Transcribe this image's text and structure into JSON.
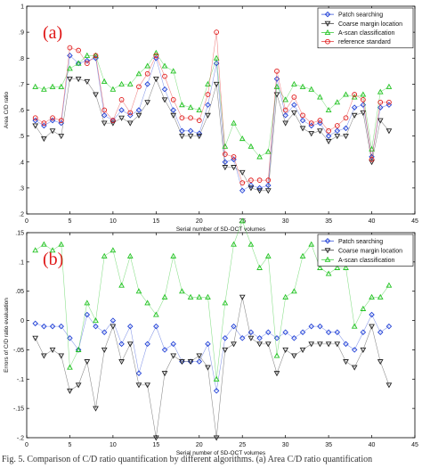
{
  "caption": "Fig. 5. Comparison of C/D ratio quantification by different algorithms. (a) Area C/D ratio quantification",
  "chart_data": [
    {
      "type": "line",
      "panel_label": "(a)",
      "xlabel": "Serial number of SD-OCT volumes",
      "ylabel": "Area C/D ratio",
      "xlim": [
        0,
        45
      ],
      "ylim": [
        0.2,
        1.0
      ],
      "xticks": [
        0,
        5,
        10,
        15,
        20,
        25,
        30,
        35,
        40,
        45
      ],
      "yticks": [
        0.2,
        0.3,
        0.4,
        0.5,
        0.6,
        0.7,
        0.8,
        0.9,
        1.0
      ],
      "legend_position": "top-right",
      "grid": false,
      "x": [
        1,
        2,
        3,
        4,
        5,
        6,
        7,
        8,
        9,
        10,
        11,
        12,
        13,
        14,
        15,
        16,
        17,
        18,
        19,
        20,
        21,
        22,
        23,
        24,
        25,
        26,
        27,
        28,
        29,
        30,
        31,
        32,
        33,
        34,
        35,
        36,
        37,
        38,
        39,
        40,
        41,
        42
      ],
      "series": [
        {
          "name": "Patch searching",
          "marker": "diamond",
          "color": "#1f3fd6",
          "values": [
            0.56,
            0.54,
            0.56,
            0.55,
            0.81,
            0.78,
            0.79,
            0.8,
            0.58,
            0.56,
            0.6,
            0.58,
            0.6,
            0.7,
            0.8,
            0.68,
            0.6,
            0.52,
            0.52,
            0.51,
            0.62,
            0.78,
            0.4,
            0.41,
            0.29,
            0.31,
            0.3,
            0.31,
            0.72,
            0.58,
            0.62,
            0.56,
            0.54,
            0.55,
            0.5,
            0.52,
            0.53,
            0.61,
            0.62,
            0.42,
            0.61,
            0.62
          ]
        },
        {
          "name": "Coarse margin location",
          "marker": "triangle-down",
          "color": "#222222",
          "values": [
            0.54,
            0.49,
            0.52,
            0.5,
            0.72,
            0.72,
            0.71,
            0.66,
            0.55,
            0.55,
            0.57,
            0.55,
            0.58,
            0.63,
            0.72,
            0.64,
            0.58,
            0.5,
            0.5,
            0.5,
            0.58,
            0.7,
            0.38,
            0.38,
            0.36,
            0.3,
            0.29,
            0.29,
            0.66,
            0.55,
            0.59,
            0.53,
            0.51,
            0.52,
            0.48,
            0.5,
            0.5,
            0.58,
            0.59,
            0.4,
            0.56,
            0.52
          ]
        },
        {
          "name": "A-scan classification",
          "marker": "triangle-up",
          "color": "#22c322",
          "values": [
            0.69,
            0.68,
            0.69,
            0.69,
            0.76,
            0.78,
            0.81,
            0.81,
            0.71,
            0.68,
            0.7,
            0.7,
            0.74,
            0.77,
            0.82,
            0.77,
            0.75,
            0.62,
            0.61,
            0.6,
            0.7,
            0.8,
            0.46,
            0.55,
            0.49,
            0.46,
            0.42,
            0.44,
            0.69,
            0.64,
            0.7,
            0.69,
            0.68,
            0.65,
            0.6,
            0.63,
            0.66,
            0.65,
            0.66,
            0.45,
            0.67,
            0.69
          ]
        },
        {
          "name": "reference standard",
          "marker": "circle",
          "color": "#e01818",
          "values": [
            0.57,
            0.55,
            0.57,
            0.56,
            0.84,
            0.83,
            0.78,
            0.81,
            0.6,
            0.56,
            0.64,
            0.59,
            0.69,
            0.74,
            0.81,
            0.73,
            0.64,
            0.57,
            0.57,
            0.56,
            0.66,
            0.9,
            0.43,
            0.42,
            0.32,
            0.33,
            0.33,
            0.33,
            0.75,
            0.6,
            0.65,
            0.58,
            0.55,
            0.56,
            0.52,
            0.54,
            0.57,
            0.66,
            0.64,
            0.41,
            0.63,
            0.63
          ]
        }
      ]
    },
    {
      "type": "line",
      "panel_label": "(b)",
      "xlabel": "Serial number of SD-OCT volumes",
      "ylabel": "Errors of C/D ratio evaluation",
      "xlim": [
        0,
        45
      ],
      "ylim": [
        -0.2,
        0.15
      ],
      "xticks": [
        0,
        5,
        10,
        15,
        20,
        25,
        30,
        35,
        40,
        45
      ],
      "yticks": [
        -0.2,
        -0.15,
        -0.1,
        -0.05,
        0,
        0.05,
        0.1,
        0.15
      ],
      "legend_position": "top-right",
      "grid": false,
      "x": [
        1,
        2,
        3,
        4,
        5,
        6,
        7,
        8,
        9,
        10,
        11,
        12,
        13,
        14,
        15,
        16,
        17,
        18,
        19,
        20,
        21,
        22,
        23,
        24,
        25,
        26,
        27,
        28,
        29,
        30,
        31,
        32,
        33,
        34,
        35,
        36,
        37,
        38,
        39,
        40,
        41,
        42
      ],
      "series": [
        {
          "name": "Patch searching",
          "marker": "diamond",
          "color": "#1f3fd6",
          "values": [
            -0.005,
            -0.01,
            -0.01,
            -0.01,
            -0.03,
            -0.05,
            0.01,
            -0.01,
            -0.02,
            0.0,
            -0.04,
            -0.01,
            -0.09,
            -0.04,
            -0.01,
            -0.05,
            -0.04,
            -0.07,
            -0.07,
            -0.07,
            -0.04,
            -0.12,
            -0.03,
            -0.01,
            -0.03,
            -0.02,
            -0.03,
            -0.02,
            -0.03,
            -0.02,
            -0.03,
            -0.02,
            -0.01,
            -0.01,
            -0.02,
            -0.02,
            -0.04,
            -0.05,
            -0.02,
            0.01,
            -0.02,
            -0.01
          ]
        },
        {
          "name": "Coarse margin location",
          "marker": "triangle-down",
          "color": "#222222",
          "values": [
            -0.03,
            -0.06,
            -0.05,
            -0.06,
            -0.12,
            -0.11,
            -0.07,
            -0.15,
            -0.05,
            -0.01,
            -0.07,
            -0.04,
            -0.11,
            -0.11,
            -0.2,
            -0.09,
            -0.06,
            -0.07,
            -0.07,
            -0.06,
            -0.08,
            -0.2,
            -0.05,
            -0.04,
            0.04,
            -0.03,
            -0.04,
            -0.04,
            -0.09,
            -0.05,
            -0.06,
            -0.05,
            -0.04,
            -0.04,
            -0.04,
            -0.04,
            -0.07,
            -0.08,
            -0.05,
            -0.01,
            -0.07,
            -0.11
          ]
        },
        {
          "name": "A-scan classification",
          "marker": "triangle-up",
          "color": "#22c322",
          "values": [
            0.12,
            0.13,
            0.12,
            0.13,
            -0.08,
            -0.05,
            0.03,
            0.0,
            0.11,
            0.12,
            0.06,
            0.11,
            0.05,
            0.03,
            0.01,
            0.04,
            0.11,
            0.05,
            0.04,
            0.04,
            0.04,
            -0.1,
            0.03,
            0.13,
            0.17,
            0.13,
            0.09,
            0.11,
            -0.06,
            0.04,
            0.05,
            0.11,
            0.13,
            0.09,
            0.08,
            0.09,
            0.09,
            -0.01,
            0.02,
            0.04,
            0.04,
            0.06
          ]
        }
      ]
    }
  ]
}
